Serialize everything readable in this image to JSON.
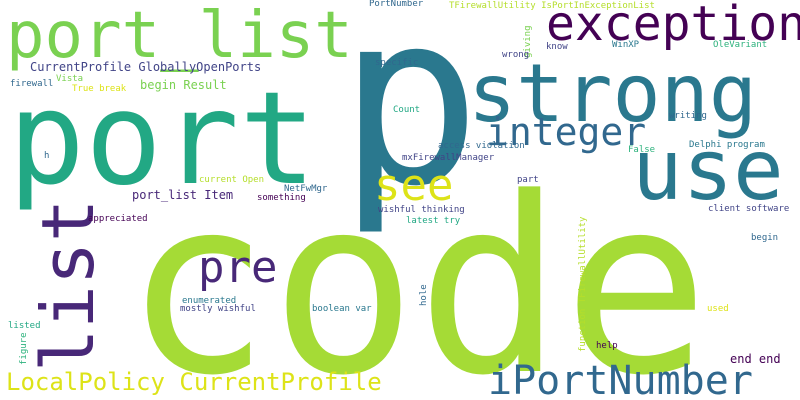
{
  "words": [
    "code",
    "p",
    "port",
    "strong",
    "port_list",
    "use",
    "exception",
    "list",
    "see",
    "integer",
    "pre",
    "iPortNumber",
    "LocalPolicy CurrentProfile",
    "CurrentProfile GloballyOpenPorts",
    "port_list Item",
    "begin Result",
    "PortNumber",
    "TFirewallUtility IsPortInExceptionList",
    "giving",
    "know",
    "WinXP",
    "OleVariant",
    "wrong",
    "firewall",
    "Vista",
    "True break",
    "specific",
    "writing",
    "Count",
    "h",
    "access violation",
    "False",
    "Delphi program",
    "mxFirewallManager",
    "current Open",
    "NetFwMgr",
    "something",
    "part",
    "appreciated",
    "wishful thinking",
    "latest try",
    "client software",
    "begin",
    "function TFirewallUtility",
    "enumerated",
    "mostly wishful",
    "boolean var",
    "hole",
    "used",
    "listed",
    "figure",
    "help",
    "end end"
  ],
  "colors": {
    "background": "#ffffff",
    "lime": "#a5db36",
    "green": "#7ad151",
    "teal_green": "#22a884",
    "teal": "#2a788e",
    "blue_teal": "#31688e",
    "indigo": "#414487",
    "dark_purple": "#440154",
    "purple": "#482878",
    "yellow": "#dde318",
    "light_green": "#b5de2b",
    "sea_green": "#2db27d"
  }
}
